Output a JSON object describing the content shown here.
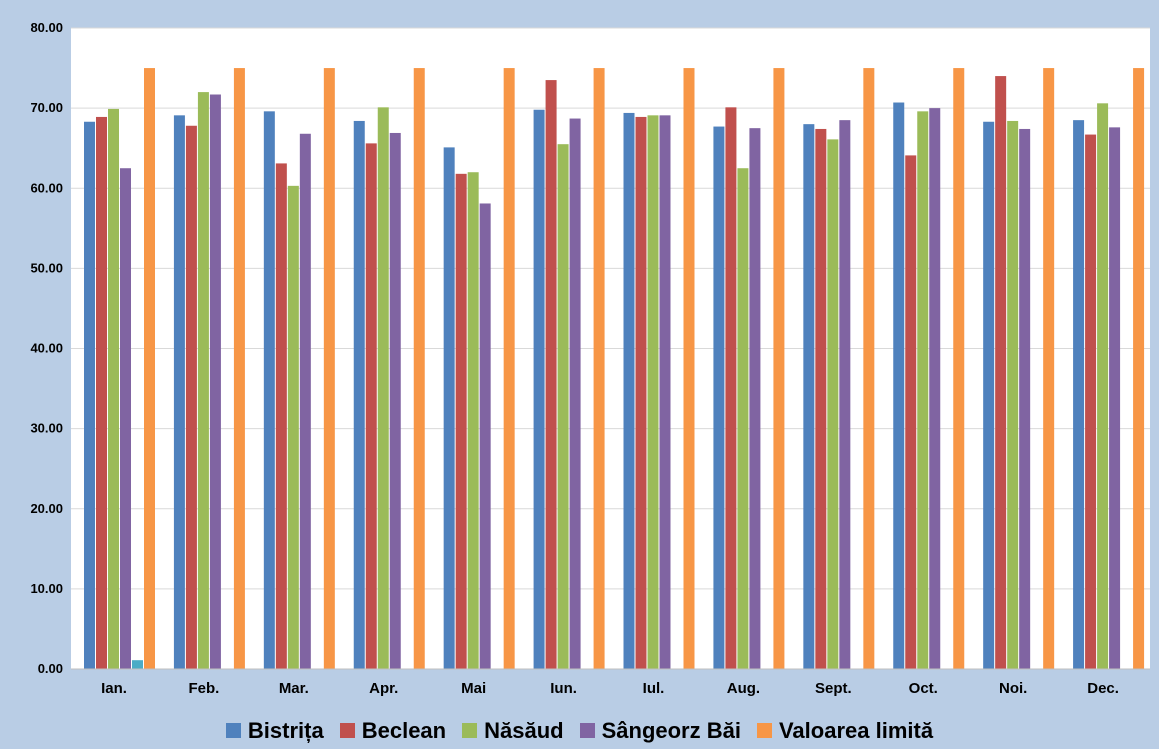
{
  "chart_data": {
    "type": "bar",
    "title": "",
    "xlabel": "",
    "ylabel": "",
    "ylim": [
      0,
      80
    ],
    "yticks": [
      "0.00",
      "10.00",
      "20.00",
      "30.00",
      "40.00",
      "50.00",
      "60.00",
      "70.00",
      "80.00"
    ],
    "categories": [
      "Ian.",
      "Feb.",
      "Mar.",
      "Apr.",
      "Mai",
      "Iun.",
      "Iul.",
      "Aug.",
      "Sept.",
      "Oct.",
      "Noi.",
      "Dec."
    ],
    "grid": true,
    "legend_position": "bottom",
    "series": [
      {
        "name": "Bistrița",
        "color": "#4f81bd",
        "values": [
          68.3,
          69.1,
          69.6,
          68.4,
          65.1,
          69.8,
          69.4,
          67.7,
          68.0,
          70.7,
          68.3,
          68.5
        ]
      },
      {
        "name": "Beclean",
        "color": "#c0504d",
        "values": [
          68.9,
          67.8,
          63.1,
          65.6,
          61.8,
          73.5,
          68.9,
          70.1,
          67.4,
          64.1,
          74.0,
          66.7
        ]
      },
      {
        "name": "Năsăud",
        "color": "#9bbb59",
        "values": [
          69.9,
          72.0,
          60.3,
          70.1,
          62.0,
          65.5,
          69.1,
          62.5,
          66.1,
          69.6,
          68.4,
          70.6
        ]
      },
      {
        "name": "Sângeorz Băi",
        "color": "#8064a2",
        "values": [
          62.5,
          71.7,
          66.8,
          66.9,
          58.1,
          68.7,
          69.1,
          67.5,
          68.5,
          70.0,
          67.4,
          67.6
        ]
      },
      {
        "name": "",
        "color": "#4bacc6",
        "values": [
          1.1,
          null,
          null,
          null,
          null,
          null,
          null,
          null,
          null,
          null,
          null,
          null
        ]
      },
      {
        "name": "Valoarea limită",
        "color": "#f79646",
        "values": [
          75,
          75,
          75,
          75,
          75,
          75,
          75,
          75,
          75,
          75,
          75,
          75
        ]
      }
    ]
  },
  "legend": {
    "items": [
      {
        "label": "Bistrița",
        "color": "#4f81bd"
      },
      {
        "label": "Beclean",
        "color": "#c0504d"
      },
      {
        "label": "Năsăud",
        "color": "#9bbb59"
      },
      {
        "label": "Sângeorz Băi",
        "color": "#8064a2"
      },
      {
        "label": "Valoarea limită",
        "color": "#f79646"
      }
    ]
  },
  "colors": {
    "background": "#b9cde5",
    "plot_area": "#ffffff",
    "gridline": "#d9d9d9"
  }
}
